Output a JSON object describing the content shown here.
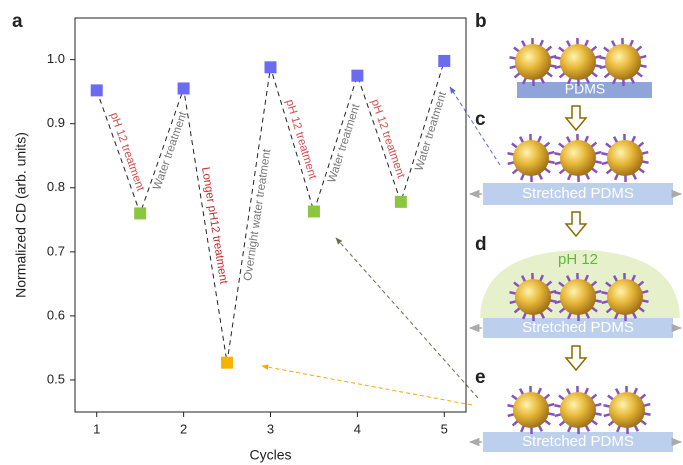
{
  "chart_data": {
    "type": "scatter",
    "y_label": "Normalized CD (arb. units)",
    "x_label": "Cycles",
    "xlim": [
      0.75,
      5.25
    ],
    "xticks": [
      1,
      2,
      3,
      4,
      5
    ],
    "ylim": [
      0.45,
      1.065
    ],
    "yticks": [
      0.5,
      0.6,
      0.7,
      0.8,
      0.9,
      {
        "value": 1,
        "label": "1.0"
      }
    ],
    "line_style": "dashed",
    "line_color": "#222222",
    "series": [
      {
        "x": [
          1,
          1.5,
          2,
          2.5,
          3,
          3.5,
          4,
          4.5,
          5
        ],
        "values": [
          0.952,
          0.76,
          0.955,
          0.527,
          0.988,
          0.763,
          0.975,
          0.778,
          0.998
        ],
        "colors": [
          "#6b6bf2",
          "#8cc63f",
          "#6b6bf2",
          "#f5b400",
          "#6b6bf2",
          "#8cc63f",
          "#6b6bf2",
          "#8cc63f",
          "#6b6bf2"
        ]
      }
    ],
    "annotations": [
      {
        "text": "pH 12 treatment",
        "color": "#d0504f"
      },
      {
        "text": "Water treatment",
        "color": "#777777"
      },
      {
        "text": "Longer pH12 treatment",
        "color": "#c0302f"
      },
      {
        "text": "Overnight water treatment",
        "color": "#777777"
      },
      {
        "text": "pH 12 treatment",
        "color": "#d0504f"
      },
      {
        "text": "Water treatment",
        "color": "#777777"
      },
      {
        "text": "pH 12 treatment",
        "color": "#d0504f"
      },
      {
        "text": "Water treatment",
        "color": "#777777"
      }
    ]
  },
  "panel_labels": [
    "a",
    "b",
    "c",
    "d",
    "e"
  ],
  "schematic": {
    "b": "PDMS",
    "c": "Stretched PDMS",
    "d_solution": "pH 12",
    "d": "Stretched PDMS",
    "e": "Stretched PDMS"
  }
}
